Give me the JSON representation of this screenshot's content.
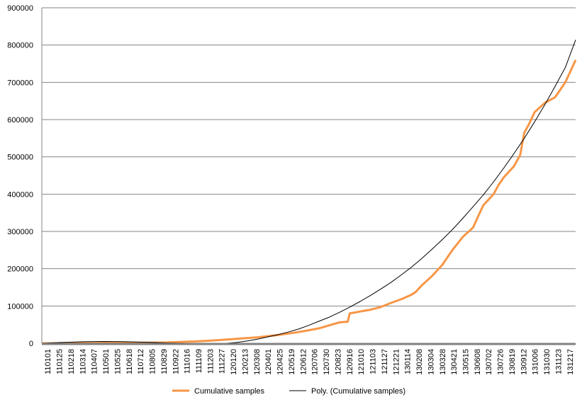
{
  "chart_data": {
    "type": "line",
    "title": "",
    "xlabel": "",
    "ylabel": "",
    "ylim": [
      0,
      900000
    ],
    "yticks": [
      0,
      100000,
      200000,
      300000,
      400000,
      500000,
      600000,
      700000,
      800000,
      900000
    ],
    "ytick_labels": [
      "0",
      "100000",
      "200000",
      "300000",
      "400000",
      "500000",
      "600000",
      "700000",
      "800000",
      "900000"
    ],
    "xtick_labels": [
      "110101",
      "110125",
      "110218",
      "110314",
      "110407",
      "110501",
      "110525",
      "110618",
      "110712",
      "110805",
      "110829",
      "110922",
      "111016",
      "111109",
      "111203",
      "111227",
      "120120",
      "120213",
      "120308",
      "120401",
      "120425",
      "120519",
      "120612",
      "120706",
      "120730",
      "120823",
      "120916",
      "121010",
      "121103",
      "121127",
      "121221",
      "130114",
      "130208",
      "130304",
      "130328",
      "130421",
      "130515",
      "130608",
      "130702",
      "130726",
      "130819",
      "130912",
      "131006",
      "131030",
      "131123",
      "131217"
    ],
    "grid": true,
    "legend_position": "bottom",
    "series": [
      {
        "name": "Cumulative samples",
        "color": "#F79646",
        "values": [
          [
            0,
            0
          ],
          [
            2,
            200
          ],
          [
            4,
            400
          ],
          [
            6,
            700
          ],
          [
            8,
            1000
          ],
          [
            10,
            1300
          ],
          [
            12,
            2000
          ],
          [
            13,
            3000
          ],
          [
            14,
            4000
          ],
          [
            15,
            5000
          ],
          [
            16,
            6500
          ],
          [
            17,
            8000
          ],
          [
            18,
            10000
          ],
          [
            19,
            12000
          ],
          [
            20,
            14000
          ],
          [
            21,
            16000
          ],
          [
            22,
            19000
          ],
          [
            23,
            22000
          ],
          [
            24,
            26000
          ],
          [
            25,
            30000
          ],
          [
            26,
            35000
          ],
          [
            27,
            40000
          ],
          [
            28,
            48000
          ],
          [
            29,
            56000
          ],
          [
            29.8,
            58000
          ],
          [
            30,
            80000
          ],
          [
            31,
            85000
          ],
          [
            32,
            90000
          ],
          [
            33,
            97000
          ],
          [
            34,
            108000
          ],
          [
            35,
            118000
          ],
          [
            36,
            130000
          ],
          [
            36.4,
            137000
          ],
          [
            37,
            155000
          ],
          [
            38,
            180000
          ],
          [
            39,
            210000
          ],
          [
            40,
            250000
          ],
          [
            41,
            285000
          ],
          [
            42,
            310000
          ],
          [
            42.5,
            340000
          ],
          [
            43,
            370000
          ],
          [
            44,
            400000
          ],
          [
            44.5,
            425000
          ],
          [
            45,
            445000
          ],
          [
            46,
            475000
          ],
          [
            46.6,
            505000
          ],
          [
            47,
            565000
          ],
          [
            47.5,
            590000
          ],
          [
            48,
            620000
          ],
          [
            49,
            645000
          ],
          [
            50,
            660000
          ],
          [
            50.5,
            680000
          ],
          [
            51,
            700000
          ],
          [
            51.5,
            730000
          ],
          [
            52,
            760000
          ]
        ]
      },
      {
        "name": "Poly. (Cumulative samples)",
        "color": "#000000",
        "values": [
          [
            0,
            0
          ],
          [
            2,
            2000
          ],
          [
            4,
            4000
          ],
          [
            6,
            4800
          ],
          [
            8,
            4200
          ],
          [
            10,
            2800
          ],
          [
            12,
            1000
          ],
          [
            14,
            0
          ],
          [
            16,
            -500
          ],
          [
            18,
            0
          ],
          [
            19,
            2000
          ],
          [
            20,
            6000
          ],
          [
            21,
            11000
          ],
          [
            22,
            17000
          ],
          [
            23,
            23000
          ],
          [
            24,
            30000
          ],
          [
            25,
            38000
          ],
          [
            26,
            48000
          ],
          [
            27,
            59000
          ],
          [
            28,
            70000
          ],
          [
            29,
            83000
          ],
          [
            30,
            97000
          ],
          [
            31,
            112000
          ],
          [
            32,
            128000
          ],
          [
            33,
            145000
          ],
          [
            34,
            163000
          ],
          [
            35,
            183000
          ],
          [
            36,
            204000
          ],
          [
            37,
            227000
          ],
          [
            38,
            252000
          ],
          [
            39,
            278000
          ],
          [
            40,
            305000
          ],
          [
            41,
            335000
          ],
          [
            42,
            366000
          ],
          [
            43,
            398000
          ],
          [
            44,
            433000
          ],
          [
            45,
            470000
          ],
          [
            46,
            509000
          ],
          [
            47,
            550000
          ],
          [
            48,
            594000
          ],
          [
            49,
            640000
          ],
          [
            50,
            689000
          ],
          [
            51,
            740000
          ],
          [
            52,
            814000
          ]
        ]
      }
    ]
  }
}
